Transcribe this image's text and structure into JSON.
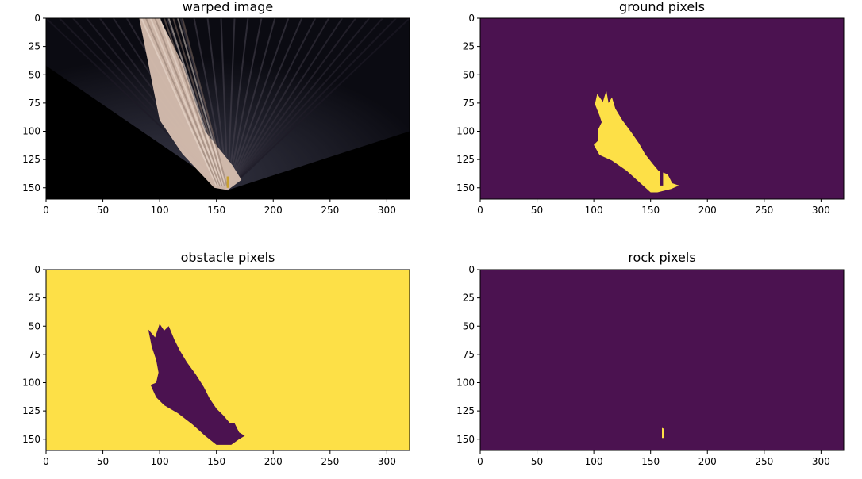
{
  "colors": {
    "background": "#ffffff",
    "viridis_low": "#440154",
    "viridis_low_display": "#4b1250",
    "viridis_high": "#fde725",
    "viridis_high_display": "#fde047",
    "axis": "#000000",
    "warped_ground": "#d7bfb0",
    "warped_black": "#000000"
  },
  "chart_data": [
    {
      "type": "heatmap",
      "title": "warped image",
      "colormap": "rgb",
      "xlim": [
        0,
        320
      ],
      "ylim": [
        160,
        0
      ],
      "xticks": [
        0,
        50,
        100,
        150,
        200,
        250,
        300
      ],
      "yticks": [
        0,
        25,
        50,
        75,
        100,
        125,
        150
      ],
      "regions": [
        {
          "kind": "fan-warp",
          "apex": [
            160,
            152
          ],
          "vertex_y": 100
        },
        {
          "kind": "bright-ground",
          "polygon": [
            [
              82,
              0
            ],
            [
              100,
              90
            ],
            [
              120,
              120
            ],
            [
              148,
              150
            ],
            [
              160,
              152
            ],
            [
              172,
              143
            ],
            [
              164,
              130
            ],
            [
              140,
              100
            ],
            [
              120,
              40
            ],
            [
              100,
              0
            ]
          ]
        },
        {
          "kind": "rock",
          "polygon": [
            [
              159,
              140
            ],
            [
              161,
              140
            ],
            [
              161,
              150
            ],
            [
              159,
              150
            ]
          ]
        }
      ]
    },
    {
      "type": "heatmap",
      "title": "ground pixels",
      "colormap": "viridis",
      "value_range": [
        0,
        1
      ],
      "xlim": [
        0,
        320
      ],
      "ylim": [
        160,
        0
      ],
      "xticks": [
        0,
        50,
        100,
        150,
        200,
        250,
        300
      ],
      "yticks": [
        0,
        25,
        50,
        75,
        100,
        125,
        150
      ],
      "background_value": 0,
      "regions": [
        {
          "value": 1,
          "polygon": [
            [
              103,
              67
            ],
            [
              108,
              74
            ],
            [
              111,
              64
            ],
            [
              113,
              75
            ],
            [
              116,
              70
            ],
            [
              119,
              80
            ],
            [
              125,
              90
            ],
            [
              133,
              101
            ],
            [
              140,
              111
            ],
            [
              145,
              120
            ],
            [
              152,
              129
            ],
            [
              157,
              135
            ],
            [
              165,
              138
            ],
            [
              169,
              146
            ],
            [
              175,
              148
            ],
            [
              168,
              151
            ],
            [
              156,
              154
            ],
            [
              150,
              154
            ],
            [
              140,
              145
            ],
            [
              129,
              135
            ],
            [
              116,
              126
            ],
            [
              105,
              121
            ],
            [
              100,
              112
            ],
            [
              104,
              108
            ],
            [
              104,
              98
            ],
            [
              107,
              92
            ],
            [
              105,
              86
            ],
            [
              101,
              76
            ]
          ]
        },
        {
          "value": 0,
          "polygon": [
            [
              158,
              135
            ],
            [
              161,
              135
            ],
            [
              161,
              148
            ],
            [
              158,
              148
            ]
          ]
        }
      ]
    },
    {
      "type": "heatmap",
      "title": "obstacle pixels",
      "colormap": "viridis",
      "value_range": [
        0,
        1
      ],
      "xlim": [
        0,
        320
      ],
      "ylim": [
        160,
        0
      ],
      "xticks": [
        0,
        50,
        100,
        150,
        200,
        250,
        300
      ],
      "yticks": [
        0,
        25,
        50,
        75,
        100,
        125,
        150
      ],
      "background_value": 1,
      "regions": [
        {
          "value": 0,
          "polygon": [
            [
              90,
              53
            ],
            [
              96,
              60
            ],
            [
              100,
              48
            ],
            [
              104,
              54
            ],
            [
              108,
              50
            ],
            [
              113,
              62
            ],
            [
              118,
              72
            ],
            [
              124,
              82
            ],
            [
              132,
              93
            ],
            [
              139,
              104
            ],
            [
              144,
              114
            ],
            [
              150,
              123
            ],
            [
              156,
              129
            ],
            [
              162,
              136
            ],
            [
              166,
              136
            ],
            [
              170,
              144
            ],
            [
              175,
              147
            ],
            [
              170,
              150
            ],
            [
              163,
              155
            ],
            [
              150,
              155
            ],
            [
              140,
              147
            ],
            [
              129,
              137
            ],
            [
              116,
              127
            ],
            [
              104,
              120
            ],
            [
              97,
              113
            ],
            [
              92,
              102
            ],
            [
              97,
              100
            ],
            [
              99,
              91
            ],
            [
              97,
              80
            ],
            [
              93,
              68
            ]
          ]
        }
      ]
    },
    {
      "type": "heatmap",
      "title": "rock pixels",
      "colormap": "viridis",
      "value_range": [
        0,
        1
      ],
      "xlim": [
        0,
        320
      ],
      "ylim": [
        160,
        0
      ],
      "xticks": [
        0,
        50,
        100,
        150,
        200,
        250,
        300
      ],
      "yticks": [
        0,
        25,
        50,
        75,
        100,
        125,
        150
      ],
      "background_value": 0,
      "regions": [
        {
          "value": 1,
          "polygon": [
            [
              160,
              140
            ],
            [
              162,
              141
            ],
            [
              162,
              149
            ],
            [
              160,
              149
            ]
          ]
        }
      ]
    }
  ]
}
